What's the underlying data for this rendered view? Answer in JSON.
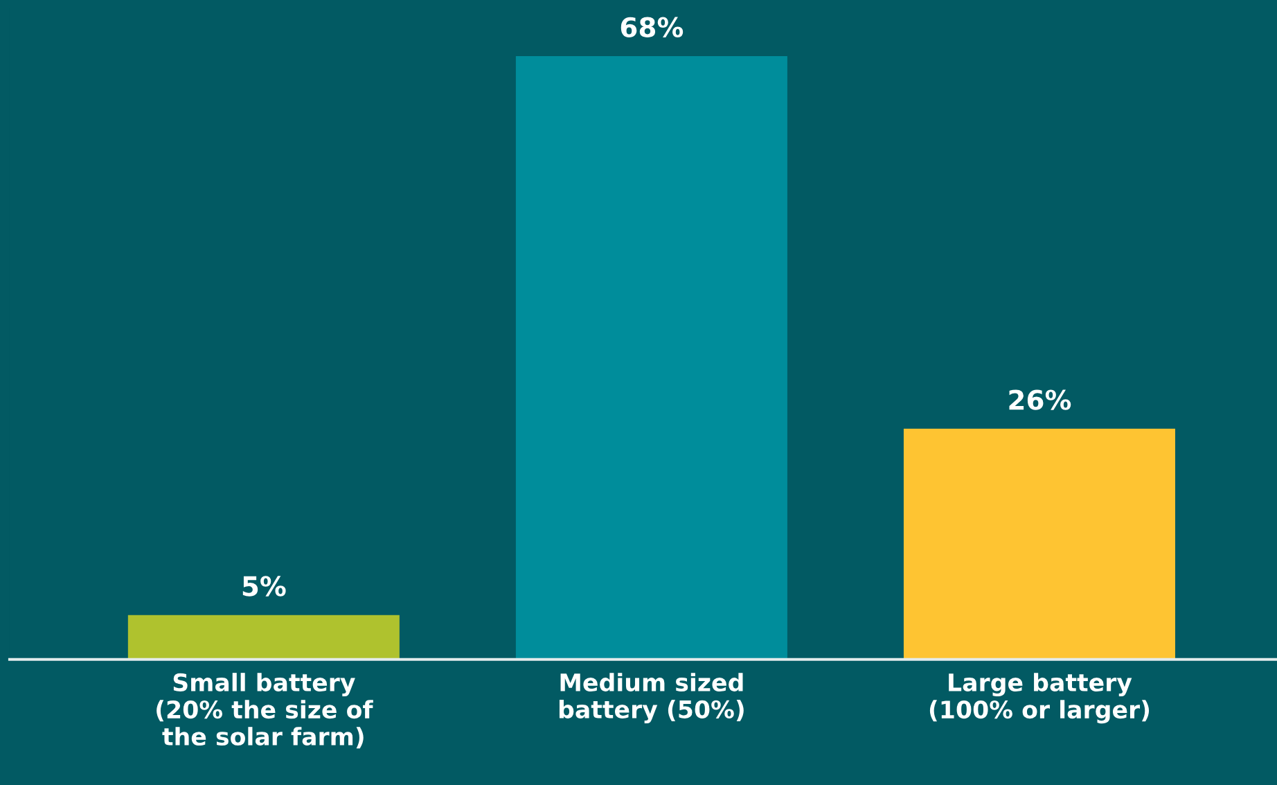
{
  "chart_data": {
    "type": "bar",
    "categories": [
      "Small battery\n(20% the size of\nthe solar farm)",
      "Medium sized\nbattery (50%)",
      "Large battery\n(100% or larger)"
    ],
    "values": [
      5,
      68,
      26
    ],
    "colors": [
      "#afc22e",
      "#008d9b",
      "#fec432"
    ],
    "value_labels": [
      "5%",
      "68%",
      "26%"
    ],
    "grid": false,
    "legend": false
  }
}
